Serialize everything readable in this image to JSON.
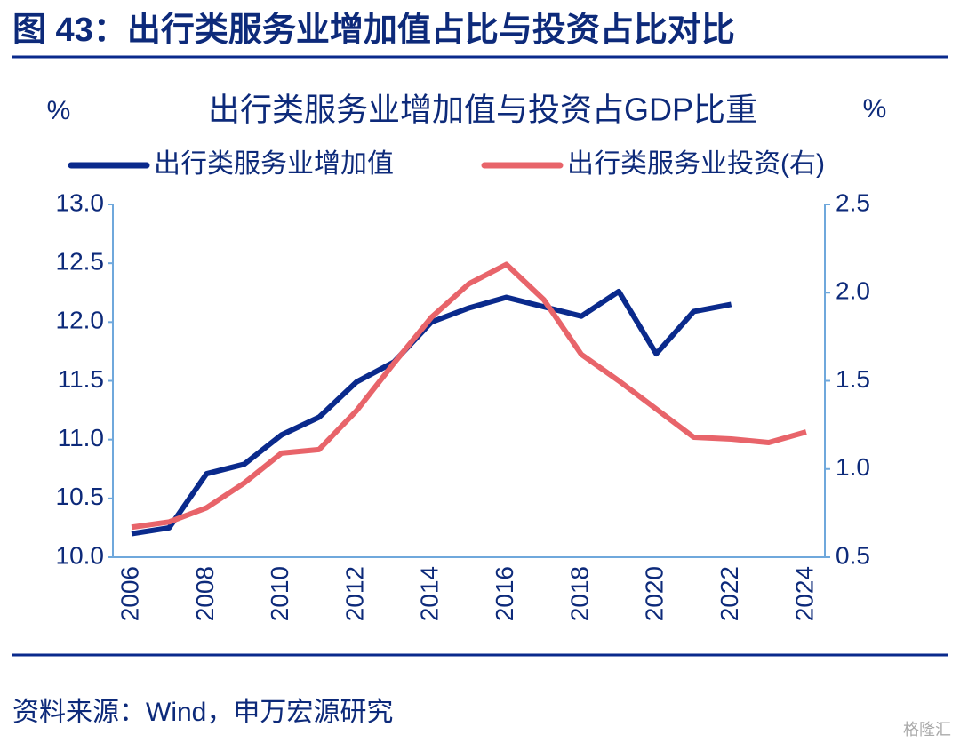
{
  "header": {
    "title": "图 43：出行类服务业增加值占比与投资占比对比"
  },
  "chart_data": {
    "type": "line",
    "title": "出行类服务业增加值与投资占GDP比重",
    "y_label": "%",
    "y2_label": "%",
    "categories": [
      "2006",
      null,
      "2008",
      null,
      "2010",
      null,
      "2012",
      null,
      "2014",
      null,
      "2016",
      null,
      "2018",
      null,
      "2020",
      null,
      "2022",
      null,
      "2024"
    ],
    "series": [
      {
        "name": "出行类服务业增加值",
        "color": "#0a2a8c",
        "values": [
          10.2,
          10.25,
          10.71,
          10.79,
          11.04,
          11.19,
          11.49,
          11.66,
          12.0,
          12.12,
          12.21,
          12.13,
          12.05,
          12.26,
          11.73,
          12.09,
          12.15,
          null,
          null
        ]
      },
      {
        "name": "出行类服务业投资(右)",
        "color": "#e8646a",
        "axis": "y2",
        "values": [
          0.67,
          0.7,
          0.78,
          0.92,
          1.09,
          1.11,
          1.33,
          1.6,
          1.86,
          2.05,
          2.16,
          1.96,
          1.65,
          1.5,
          1.34,
          1.18,
          1.17,
          1.15,
          1.21
        ]
      }
    ],
    "ylim": [
      10.0,
      13.0
    ],
    "yticks": [
      {
        "value": 10,
        "label": "10.0"
      },
      10.5,
      {
        "value": 11,
        "label": "11.0"
      },
      11.5,
      {
        "value": 12,
        "label": "12.0"
      },
      12.5,
      {
        "value": 13,
        "label": "13.0"
      }
    ],
    "y2lim": [
      0.5,
      2.5
    ],
    "y2ticks": [
      0.5,
      {
        "value": 1,
        "label": "1.0"
      },
      1.5,
      {
        "value": 2,
        "label": "2.0"
      },
      2.5
    ]
  },
  "footer": {
    "source": "资料来源：Wind，申万宏源研究",
    "watermark": "格隆汇"
  }
}
